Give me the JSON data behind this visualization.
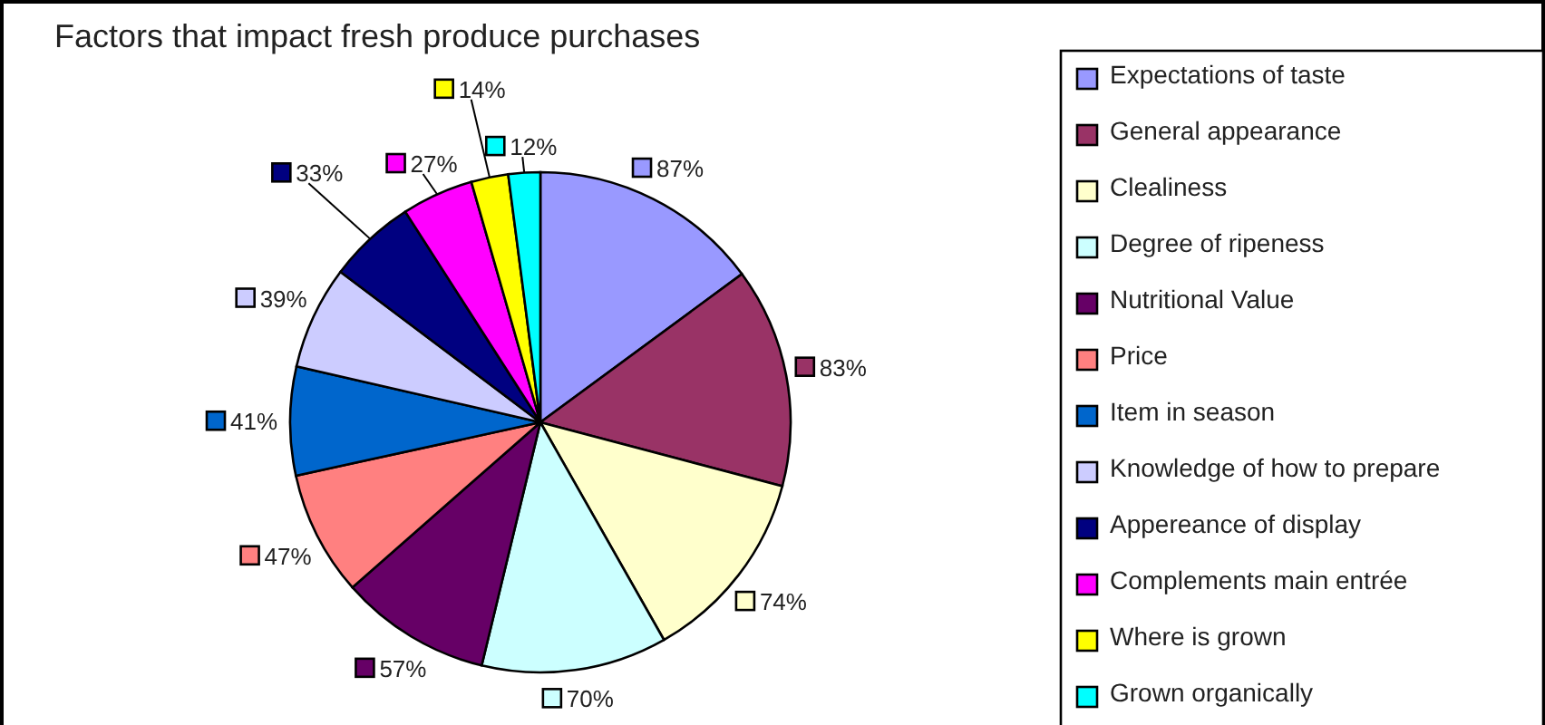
{
  "chart_data": {
    "type": "pie",
    "title": "Factors that impact fresh produce purchases",
    "categories": [
      "Expectations of taste",
      "General appearance",
      "Clealiness",
      "Degree of ripeness",
      "Nutritional Value",
      "Price",
      "Item in season",
      "Knowledge of how to prepare",
      "Appereance of display",
      "Complements main entrée",
      "Where is grown",
      "Grown organically"
    ],
    "values": [
      87,
      83,
      74,
      70,
      57,
      47,
      41,
      39,
      33,
      27,
      14,
      12
    ],
    "value_labels": [
      "87%",
      "83%",
      "74%",
      "70%",
      "57%",
      "47%",
      "41%",
      "39%",
      "33%",
      "27%",
      "14%",
      "12%"
    ],
    "colors": [
      "#9999ff",
      "#993366",
      "#ffffcc",
      "#ccffff",
      "#660066",
      "#ff8080",
      "#0066cc",
      "#ccccff",
      "#000080",
      "#ff00ff",
      "#ffff00",
      "#00ffff"
    ],
    "legend": "right"
  }
}
